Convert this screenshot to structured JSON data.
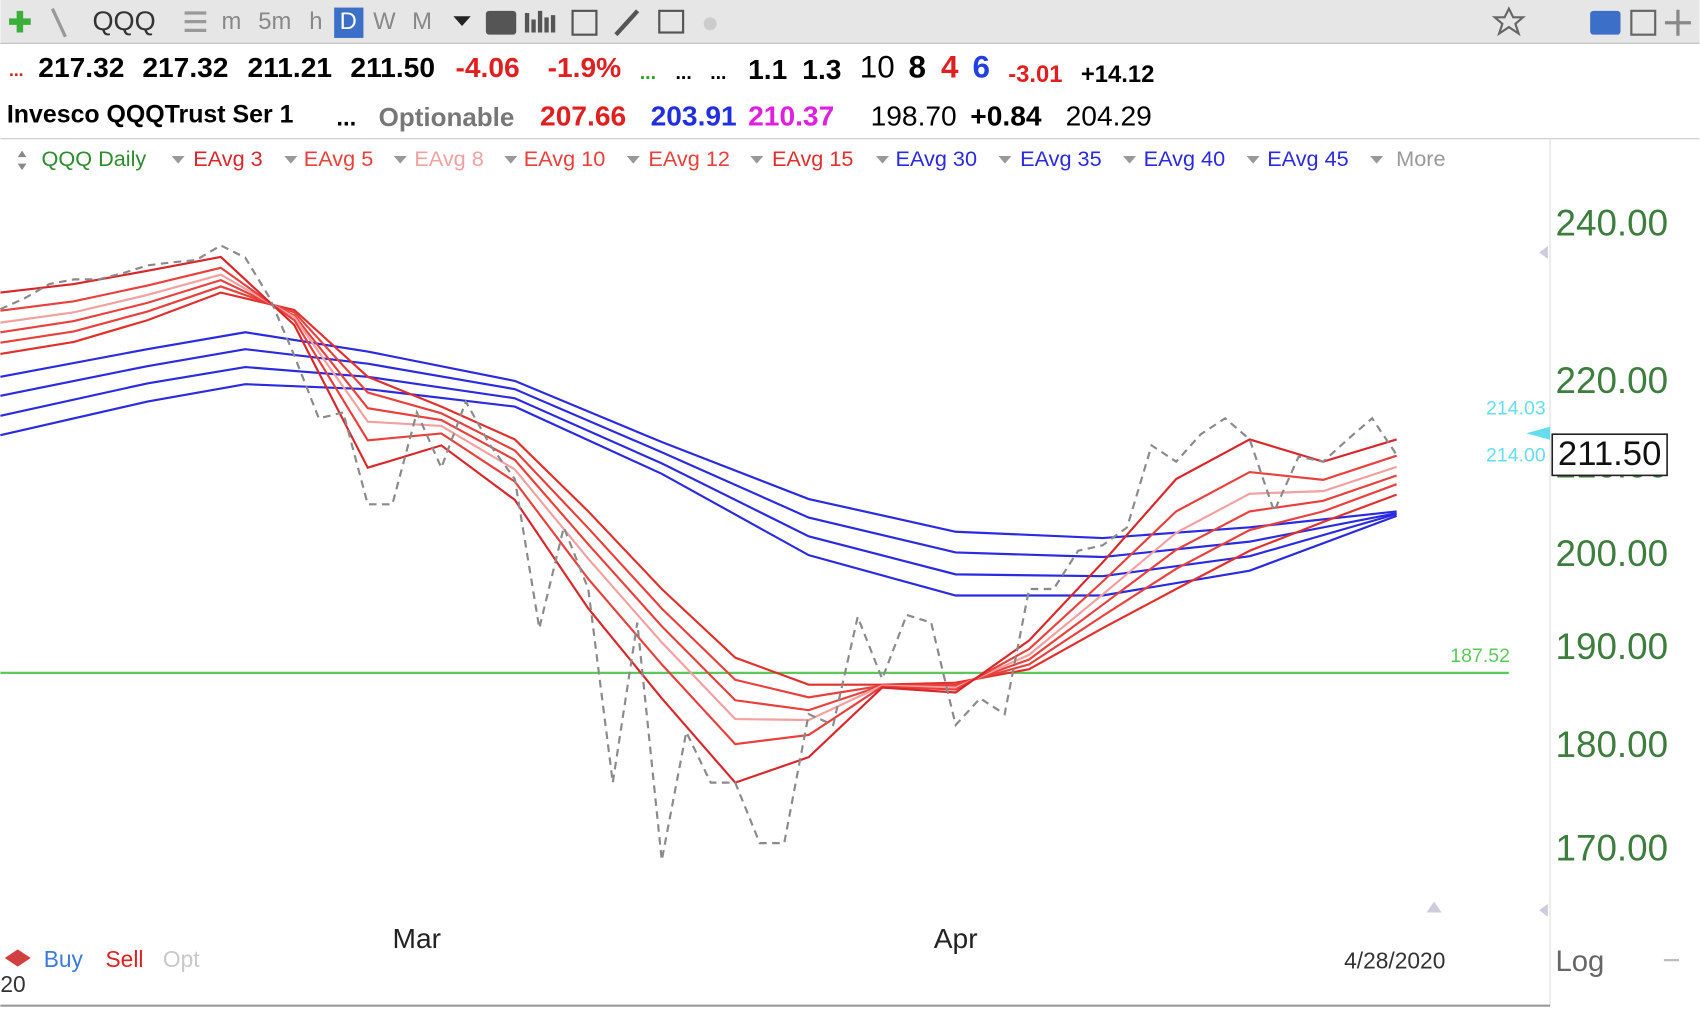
{
  "toolbar": {
    "symbol": "QQQ",
    "intervals": [
      "m",
      "5m",
      "h",
      "D",
      "W",
      "M"
    ]
  },
  "quote_row": [
    "...",
    "217.32",
    "217.32",
    "211.21",
    "211.50",
    "-4.06",
    "-1.9%",
    "...",
    "...",
    "...",
    "1.1",
    "1.3",
    "10",
    "8",
    "4",
    "6",
    "-3.01",
    "+14.12"
  ],
  "info_row": {
    "name": "Invesco QQQTrust Ser 1",
    "items": [
      "...",
      "Optionable",
      "207.66",
      "203.91",
      "210.37",
      "198.70",
      "+0.84",
      "204.29"
    ]
  },
  "bottom_bar": {
    "buttons": [
      "Buy",
      "Sell",
      "Opt"
    ],
    "partial": "20",
    "scale_mode": "Log"
  },
  "chart_data": {
    "type": "line",
    "log_scale": true,
    "xlim": [
      0,
      63
    ],
    "xticks": [
      {
        "value": 17,
        "label": "Mar"
      },
      {
        "value": 39,
        "label": "Apr"
      }
    ],
    "ylim": [
      164,
      246
    ],
    "yticks": [
      {
        "value": 170,
        "label": "170.00"
      },
      {
        "value": 180,
        "label": "180.00"
      },
      {
        "value": 190,
        "label": "190.00"
      },
      {
        "value": 200,
        "label": "200.00"
      },
      {
        "value": 210,
        "label": "210.00"
      },
      {
        "value": 220,
        "label": "220.00"
      },
      {
        "value": 240,
        "label": "240.00"
      }
    ],
    "legend_more": "More",
    "date_label": "4/28/2020",
    "hline": {
      "value": 187.52,
      "color": "#5cc85c"
    },
    "price_markers": [
      214.03,
      {
        "value": 214,
        "label": "214.00"
      }
    ],
    "marker_color": "#66ddee",
    "last_price": {
      "value": 211.5,
      "label": "211.50"
    },
    "series": [
      {
        "name": "QQQ Daily",
        "color": "#8a8a8a",
        "dashed": true,
        "x": [
          0,
          1,
          2,
          3,
          4,
          5,
          6,
          7,
          8,
          9,
          10,
          11,
          12,
          13,
          14,
          15,
          16,
          17,
          18,
          19,
          20,
          21,
          22,
          23,
          24,
          25,
          26,
          27,
          28,
          29,
          30,
          31,
          32,
          33,
          34,
          35,
          36,
          37,
          38,
          39,
          40,
          41,
          42,
          43,
          44,
          45,
          46,
          47,
          48,
          49,
          50,
          51,
          52,
          53,
          54,
          55,
          56,
          57
        ],
        "values": [
          229.2,
          230.6,
          232.4,
          233,
          233,
          233.8,
          234.8,
          235.2,
          235.5,
          237.4,
          235.8,
          230.6,
          223.4,
          215.8,
          216.5,
          205.8,
          205.8,
          216.5,
          210,
          217.8,
          212.6,
          208.7,
          192.2,
          203.2,
          196.4,
          176.5,
          192.8,
          169.1,
          181.5,
          176.5,
          176.5,
          170.7,
          170.7,
          183.3,
          182.2,
          193.4,
          186.9,
          193.6,
          192.8,
          182.2,
          184.9,
          183.3,
          196.4,
          196.4,
          200.6,
          201.2,
          203.2,
          212.6,
          210.7,
          213.9,
          215.8,
          213.3,
          205,
          211.3,
          210.7,
          213.3,
          215.8,
          211.5
        ]
      },
      {
        "name": "EAvg 3",
        "color": "#d8262a",
        "x": [
          0,
          3,
          6,
          9,
          12,
          15,
          18,
          21,
          24,
          27,
          30,
          33,
          36,
          39,
          42,
          45,
          48,
          51,
          54,
          57
        ],
        "values": [
          231.3,
          232.4,
          234.1,
          235.9,
          227.2,
          210.0,
          212.6,
          206.3,
          194.3,
          184.9,
          176.5,
          179.0,
          186.0,
          185.5,
          190.9,
          199.3,
          208.7,
          213.3,
          210.7,
          213.3
        ]
      },
      {
        "name": "EAvg 5",
        "color": "#e8403c",
        "x": [
          0,
          3,
          6,
          9,
          12,
          15,
          18,
          21,
          24,
          27,
          30,
          33,
          36,
          39,
          42,
          45,
          48,
          51,
          54,
          57
        ],
        "values": [
          229.0,
          230.2,
          232.2,
          234.5,
          227.8,
          213.2,
          214.0,
          208.4,
          197.5,
          188.4,
          180.3,
          181.2,
          186.1,
          185.8,
          190.0,
          197.2,
          205.0,
          209.5,
          208.6,
          211.4
        ]
      },
      {
        "name": "EAvg 8",
        "color": "#f2a0a0",
        "x": [
          0,
          3,
          6,
          9,
          12,
          15,
          18,
          21,
          24,
          27,
          30,
          33,
          36,
          39,
          42,
          45,
          48,
          51,
          54,
          57
        ],
        "values": [
          227.5,
          228.8,
          231.0,
          233.6,
          228.2,
          215.4,
          214.9,
          209.8,
          199.7,
          190.7,
          182.8,
          182.7,
          186.2,
          186.0,
          189.4,
          195.8,
          202.6,
          207.0,
          207.3,
          210.1
        ]
      },
      {
        "name": "EAvg 10",
        "color": "#e8403c",
        "x": [
          0,
          3,
          6,
          9,
          12,
          15,
          18,
          21,
          24,
          27,
          30,
          33,
          36,
          39,
          42,
          45,
          48,
          51,
          54,
          57
        ],
        "values": [
          226.3,
          227.7,
          230.0,
          232.9,
          228.4,
          217.0,
          215.6,
          210.9,
          201.3,
          192.4,
          184.7,
          183.7,
          186.2,
          186.2,
          188.9,
          194.7,
          200.7,
          205.0,
          206.2,
          209.1
        ]
      },
      {
        "name": "EAvg 12",
        "color": "#e8403c",
        "x": [
          0,
          3,
          6,
          9,
          12,
          15,
          18,
          21,
          24,
          27,
          30,
          33,
          36,
          39,
          42,
          45,
          48,
          51,
          54,
          57
        ],
        "values": [
          225.0,
          226.4,
          228.9,
          232.1,
          228.8,
          218.9,
          216.4,
          212.0,
          203.1,
          194.3,
          186.8,
          185.0,
          186.2,
          186.3,
          188.4,
          193.5,
          198.6,
          202.9,
          205.0,
          208.1
        ]
      },
      {
        "name": "EAvg 15",
        "color": "#e0302c",
        "x": [
          0,
          3,
          6,
          9,
          12,
          15,
          18,
          21,
          24,
          27,
          30,
          33,
          36,
          39,
          42,
          45,
          48,
          51,
          54,
          57
        ],
        "values": [
          223.6,
          225.1,
          227.8,
          231.3,
          229.1,
          220.8,
          217.2,
          213.3,
          205.0,
          196.4,
          189.1,
          186.3,
          186.3,
          186.5,
          187.9,
          192.2,
          196.4,
          200.6,
          203.8,
          206.9
        ]
      },
      {
        "name": "EAvg 30",
        "color": "#2a2ae0",
        "x": [
          0,
          6,
          10,
          15,
          21,
          27,
          33,
          39,
          45,
          51,
          57
        ],
        "values": [
          220.8,
          224.2,
          226.3,
          223.9,
          220.3,
          213.0,
          206.4,
          202.7,
          202.0,
          203.2,
          205.0
        ]
      },
      {
        "name": "EAvg 35",
        "color": "#2a2ae0",
        "x": [
          0,
          6,
          10,
          15,
          21,
          27,
          33,
          39,
          45,
          51,
          57
        ],
        "values": [
          218.5,
          222.1,
          224.2,
          222.4,
          219.3,
          211.8,
          204.3,
          200.4,
          199.9,
          201.6,
          204.8
        ]
      },
      {
        "name": "EAvg 40",
        "color": "#2a2ae0",
        "x": [
          0,
          6,
          10,
          15,
          21,
          27,
          33,
          39,
          45,
          51,
          57
        ],
        "values": [
          216.1,
          220.0,
          222.0,
          220.8,
          218.2,
          210.5,
          202.2,
          198.0,
          197.8,
          200.0,
          204.7
        ]
      },
      {
        "name": "EAvg 45",
        "color": "#2a2ae0",
        "x": [
          0,
          6,
          10,
          15,
          21,
          27,
          33,
          39,
          45,
          51,
          57
        ],
        "values": [
          213.8,
          217.8,
          219.9,
          219.3,
          217.2,
          209.3,
          200.1,
          195.7,
          195.7,
          198.4,
          204.5
        ]
      }
    ]
  }
}
